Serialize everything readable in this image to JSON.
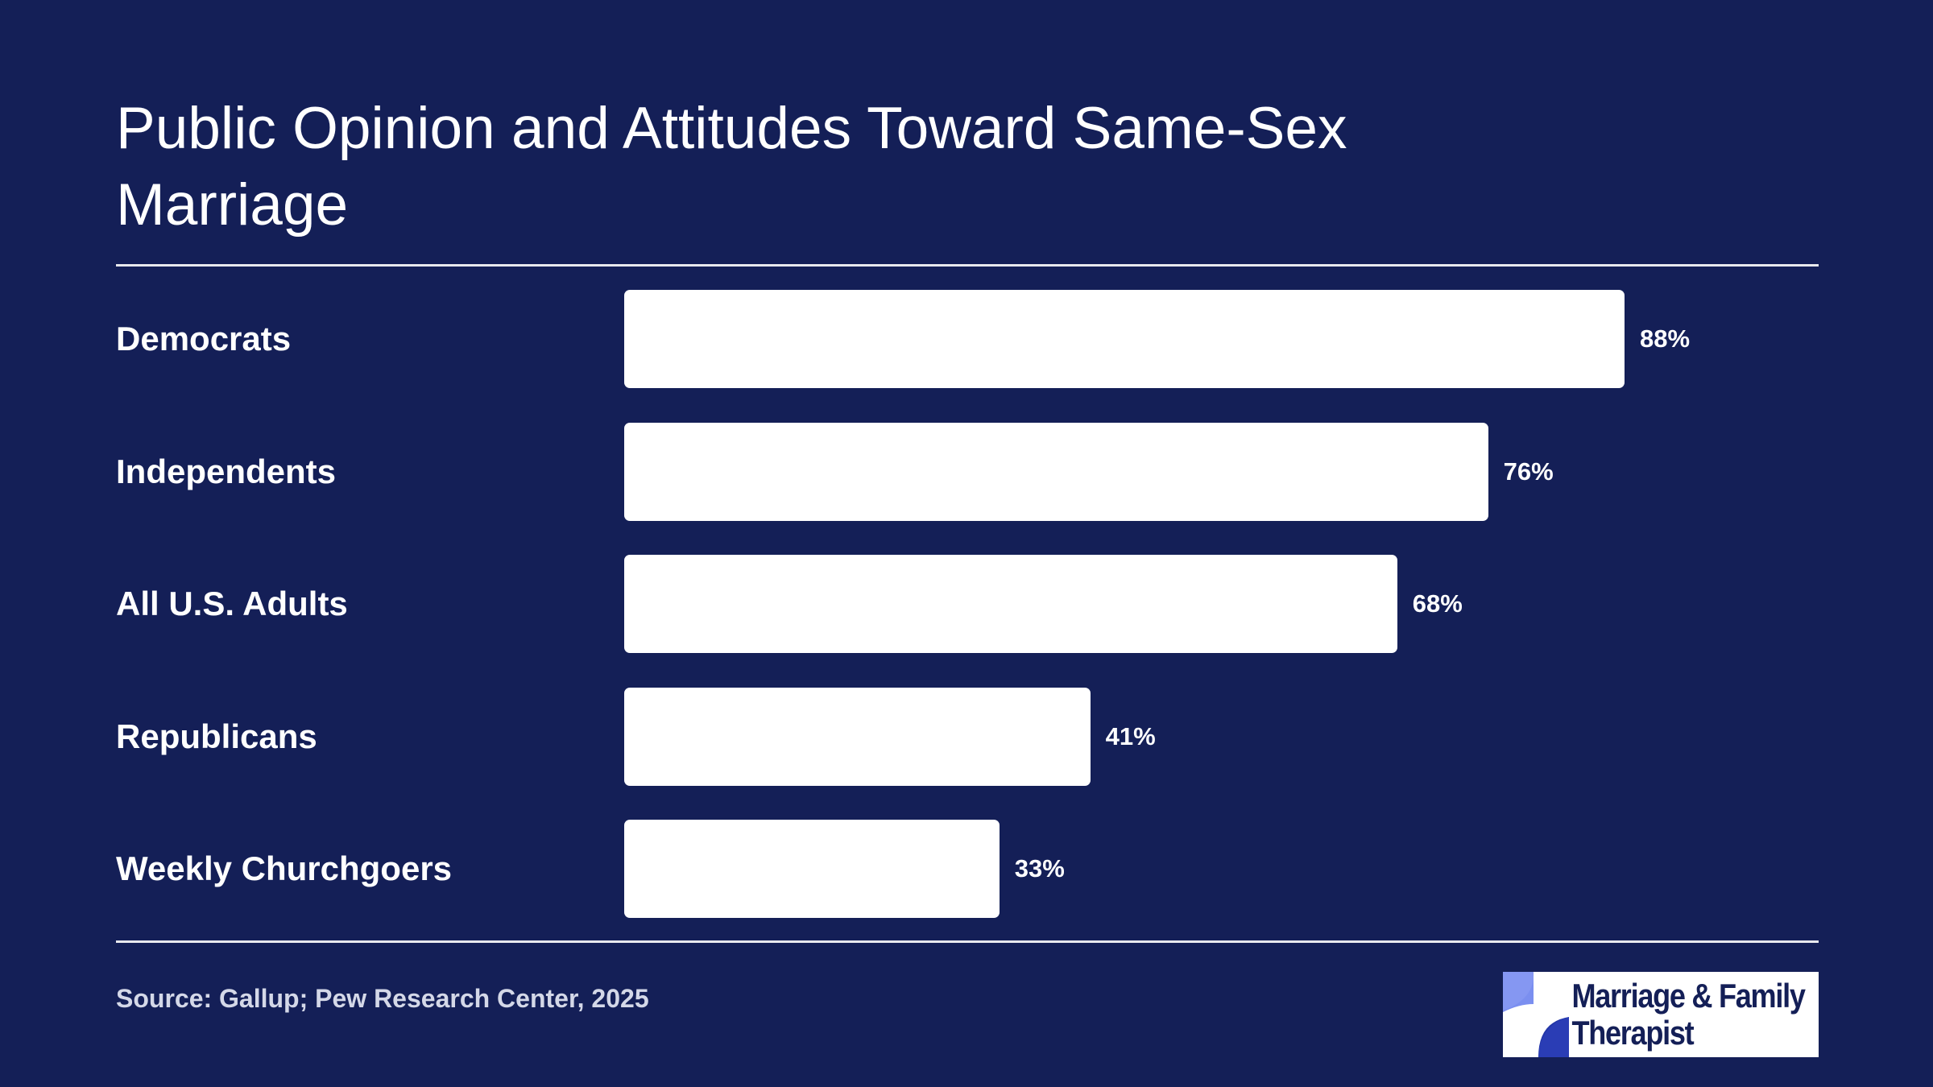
{
  "header": {
    "title": "Public Opinion and Attitudes Toward Same-Sex Marriage"
  },
  "footer": {
    "source": "Source: Gallup; Pew Research Center, 2025",
    "logo_line1": "Marriage & Family",
    "logo_line2": "Therapist"
  },
  "colors": {
    "background": "#141f57",
    "bar": "#ffffff",
    "logo_accent_light": "#7b8ff0",
    "logo_accent_dark": "#2336a8"
  },
  "chart_data": {
    "type": "bar",
    "orientation": "horizontal",
    "title": "Public Opinion and Attitudes Toward Same-Sex Marriage",
    "categories": [
      "Democrats",
      "Independents",
      "All U.S. Adults",
      "Republicans",
      "Weekly Churchgoers"
    ],
    "values": [
      88,
      76,
      68,
      41,
      33
    ],
    "value_labels": [
      "88%",
      "76%",
      "68%",
      "41%",
      "33%"
    ],
    "xlim": [
      0,
      100
    ],
    "grid": false,
    "legend": "none"
  }
}
